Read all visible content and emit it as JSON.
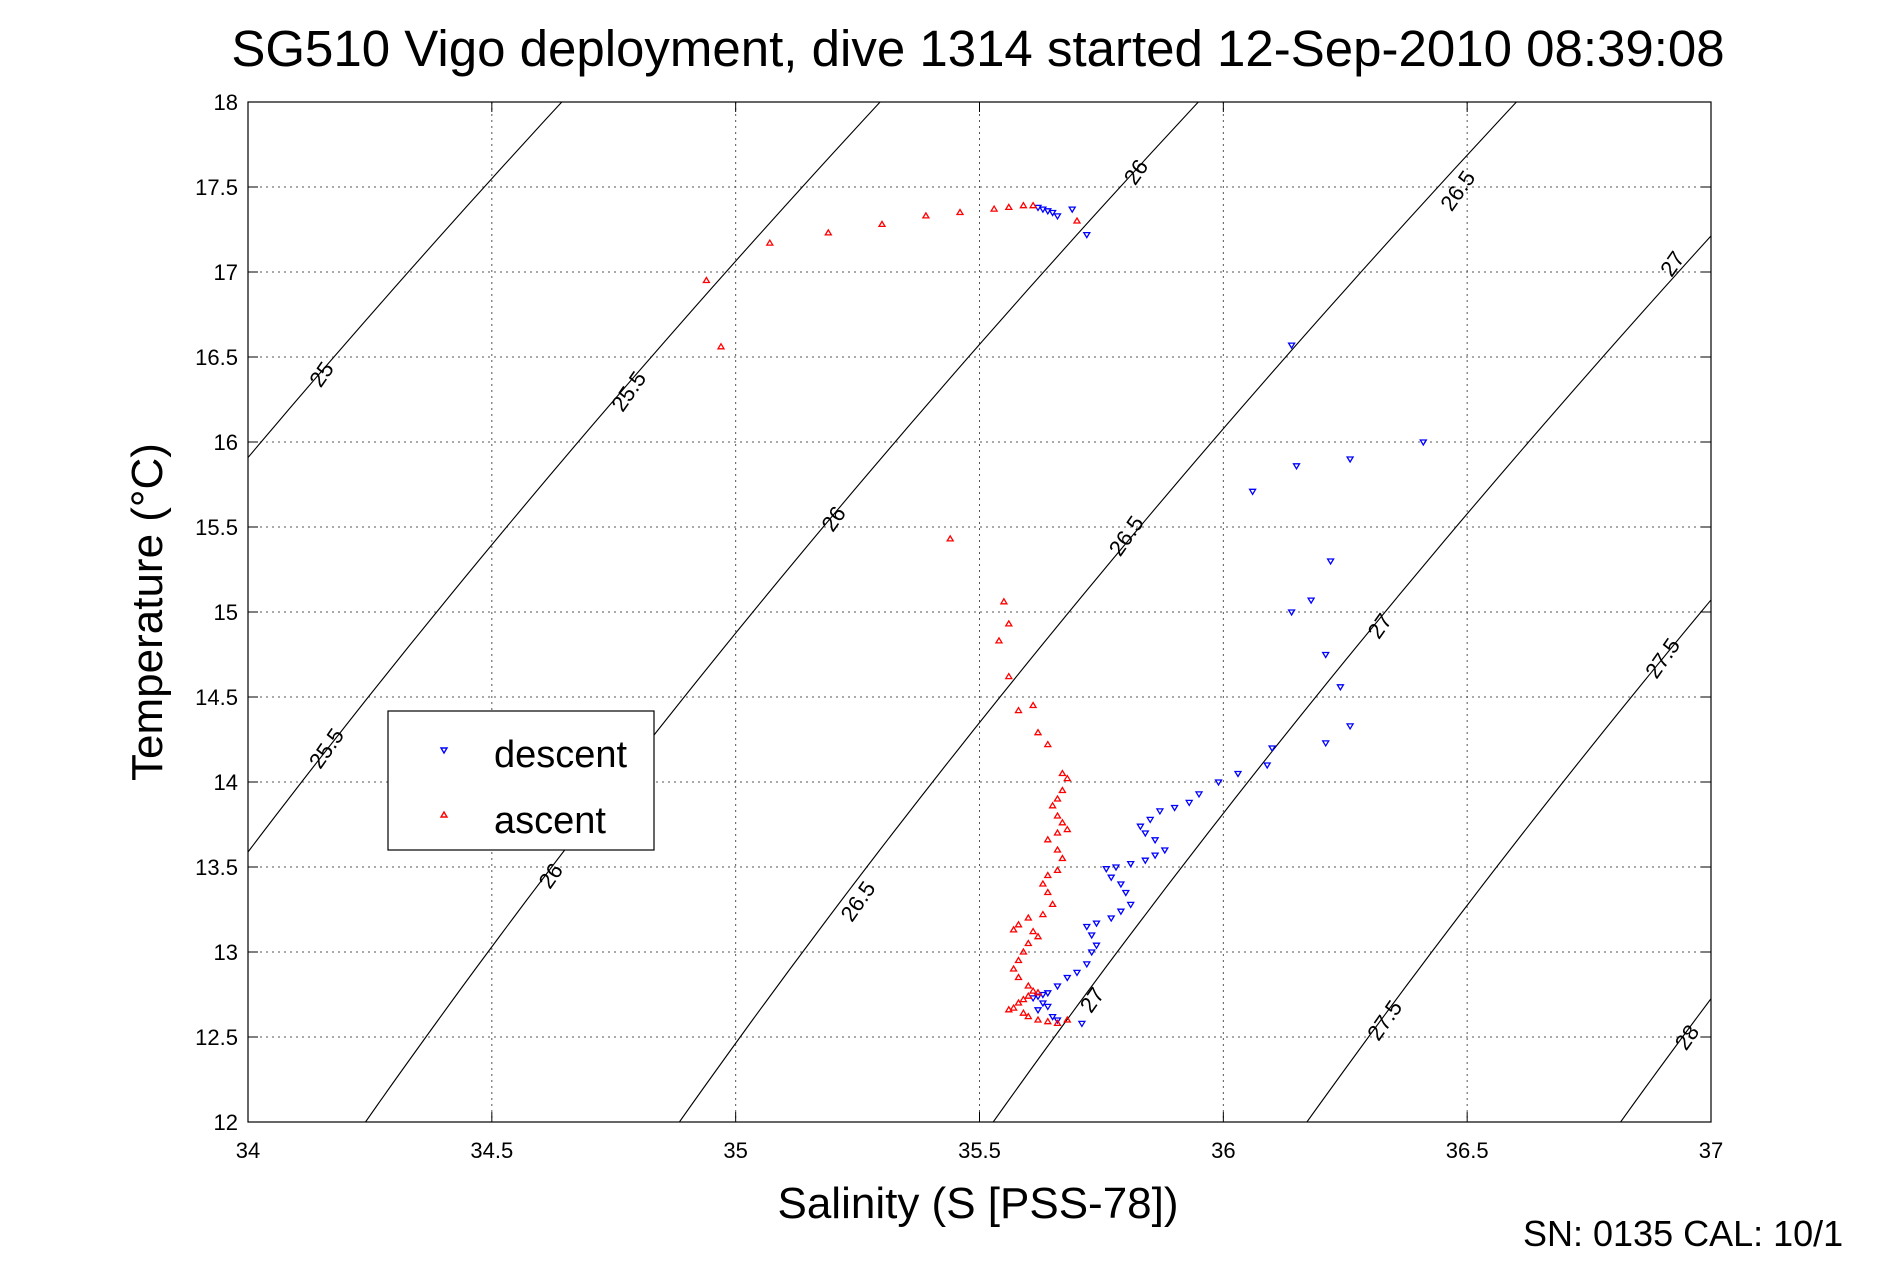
{
  "chart_data": {
    "type": "scatter",
    "title": "SG510 Vigo deployment, dive 1314 started 12-Sep-2010 08:39:08",
    "xlabel": "Salinity (S [PSS-78])",
    "ylabel": "Temperature (°C)",
    "xlim": [
      34,
      37
    ],
    "ylim": [
      12,
      18
    ],
    "xticks": [
      34,
      34.5,
      35,
      35.5,
      36,
      36.5,
      37
    ],
    "xtick_labels": [
      "34",
      "34.5",
      "35",
      "35.5",
      "36",
      "36.5",
      "37"
    ],
    "yticks": [
      12,
      12.5,
      13,
      13.5,
      14,
      14.5,
      15,
      15.5,
      16,
      16.5,
      17,
      17.5,
      18
    ],
    "ytick_labels": [
      "12",
      "12.5",
      "13",
      "13.5",
      "14",
      "14.5",
      "15",
      "15.5",
      "16",
      "16.5",
      "17",
      "17.5",
      "18"
    ],
    "grid": true,
    "legend_position": "center-left",
    "density_contours": {
      "levels": [
        25,
        25.5,
        26,
        26.5,
        27,
        27.5,
        28
      ],
      "color": "#000000",
      "labels": [
        {
          "text": "25",
          "s": 34.15,
          "t": 16.4
        },
        {
          "text": "25.5",
          "s": 34.78,
          "t": 16.3
        },
        {
          "text": "26",
          "s": 35.82,
          "t": 17.59
        },
        {
          "text": "26.5",
          "s": 36.48,
          "t": 17.48
        },
        {
          "text": "27",
          "s": 36.92,
          "t": 17.05
        },
        {
          "text": "25.5",
          "s": 34.16,
          "t": 14.2
        },
        {
          "text": "26",
          "s": 35.2,
          "t": 15.55
        },
        {
          "text": "26.5",
          "s": 35.8,
          "t": 15.45
        },
        {
          "text": "27",
          "s": 36.32,
          "t": 14.92
        },
        {
          "text": "27.5",
          "s": 36.9,
          "t": 14.73
        },
        {
          "text": "26",
          "s": 34.62,
          "t": 13.45
        },
        {
          "text": "26.5",
          "s": 35.25,
          "t": 13.3
        },
        {
          "text": "27",
          "s": 35.73,
          "t": 12.72
        },
        {
          "text": "27.5",
          "s": 36.33,
          "t": 12.6
        },
        {
          "text": "28",
          "s": 36.95,
          "t": 12.5
        }
      ]
    },
    "series": [
      {
        "name": "descent",
        "color": "#0000ff",
        "marker": "triangle-down",
        "points": [
          [
            35.62,
            17.38
          ],
          [
            35.63,
            17.37
          ],
          [
            35.64,
            17.36
          ],
          [
            35.65,
            17.35
          ],
          [
            35.66,
            17.33
          ],
          [
            35.69,
            17.37
          ],
          [
            35.72,
            17.22
          ],
          [
            36.14,
            16.57
          ],
          [
            36.41,
            16.0
          ],
          [
            36.26,
            15.9
          ],
          [
            36.15,
            15.86
          ],
          [
            36.06,
            15.71
          ],
          [
            36.22,
            15.3
          ],
          [
            36.18,
            15.07
          ],
          [
            36.14,
            15.0
          ],
          [
            36.21,
            14.75
          ],
          [
            36.24,
            14.56
          ],
          [
            36.26,
            14.33
          ],
          [
            36.21,
            14.23
          ],
          [
            36.1,
            14.2
          ],
          [
            36.09,
            14.1
          ],
          [
            36.03,
            14.05
          ],
          [
            35.99,
            14.0
          ],
          [
            35.95,
            13.93
          ],
          [
            35.93,
            13.88
          ],
          [
            35.9,
            13.85
          ],
          [
            35.87,
            13.83
          ],
          [
            35.85,
            13.78
          ],
          [
            35.83,
            13.74
          ],
          [
            35.84,
            13.7
          ],
          [
            35.86,
            13.66
          ],
          [
            35.88,
            13.6
          ],
          [
            35.86,
            13.57
          ],
          [
            35.84,
            13.54
          ],
          [
            35.81,
            13.52
          ],
          [
            35.78,
            13.5
          ],
          [
            35.76,
            13.49
          ],
          [
            35.77,
            13.44
          ],
          [
            35.79,
            13.4
          ],
          [
            35.8,
            13.35
          ],
          [
            35.81,
            13.28
          ],
          [
            35.79,
            13.24
          ],
          [
            35.77,
            13.2
          ],
          [
            35.74,
            13.17
          ],
          [
            35.72,
            13.15
          ],
          [
            35.73,
            13.1
          ],
          [
            35.74,
            13.04
          ],
          [
            35.73,
            13.0
          ],
          [
            35.72,
            12.93
          ],
          [
            35.7,
            12.88
          ],
          [
            35.68,
            12.85
          ],
          [
            35.66,
            12.8
          ],
          [
            35.64,
            12.76
          ],
          [
            35.63,
            12.75
          ],
          [
            35.62,
            12.74
          ],
          [
            35.61,
            12.73
          ],
          [
            35.63,
            12.7
          ],
          [
            35.64,
            12.68
          ],
          [
            35.62,
            12.66
          ],
          [
            35.65,
            12.62
          ],
          [
            35.66,
            12.6
          ],
          [
            35.71,
            12.58
          ]
        ]
      },
      {
        "name": "ascent",
        "color": "#ff0000",
        "marker": "triangle-up",
        "points": [
          [
            35.7,
            17.3
          ],
          [
            35.61,
            17.39
          ],
          [
            35.59,
            17.39
          ],
          [
            35.56,
            17.38
          ],
          [
            35.53,
            17.37
          ],
          [
            35.46,
            17.35
          ],
          [
            35.39,
            17.33
          ],
          [
            35.3,
            17.28
          ],
          [
            35.19,
            17.23
          ],
          [
            35.07,
            17.17
          ],
          [
            34.94,
            16.95
          ],
          [
            34.97,
            16.56
          ],
          [
            35.44,
            15.43
          ],
          [
            35.55,
            15.06
          ],
          [
            35.56,
            14.93
          ],
          [
            35.54,
            14.83
          ],
          [
            35.56,
            14.62
          ],
          [
            35.58,
            14.42
          ],
          [
            35.61,
            14.45
          ],
          [
            35.62,
            14.29
          ],
          [
            35.64,
            14.22
          ],
          [
            35.67,
            14.05
          ],
          [
            35.68,
            14.02
          ],
          [
            35.67,
            13.95
          ],
          [
            35.66,
            13.9
          ],
          [
            35.65,
            13.86
          ],
          [
            35.66,
            13.8
          ],
          [
            35.67,
            13.76
          ],
          [
            35.68,
            13.72
          ],
          [
            35.66,
            13.7
          ],
          [
            35.64,
            13.66
          ],
          [
            35.66,
            13.6
          ],
          [
            35.67,
            13.55
          ],
          [
            35.66,
            13.48
          ],
          [
            35.64,
            13.45
          ],
          [
            35.63,
            13.4
          ],
          [
            35.64,
            13.35
          ],
          [
            35.65,
            13.28
          ],
          [
            35.63,
            13.22
          ],
          [
            35.6,
            13.2
          ],
          [
            35.58,
            13.16
          ],
          [
            35.57,
            13.13
          ],
          [
            35.61,
            13.12
          ],
          [
            35.62,
            13.09
          ],
          [
            35.6,
            13.05
          ],
          [
            35.59,
            13.0
          ],
          [
            35.58,
            12.95
          ],
          [
            35.57,
            12.9
          ],
          [
            35.58,
            12.85
          ],
          [
            35.6,
            12.8
          ],
          [
            35.61,
            12.77
          ],
          [
            35.62,
            12.76
          ],
          [
            35.6,
            12.74
          ],
          [
            35.59,
            12.72
          ],
          [
            35.58,
            12.7
          ],
          [
            35.57,
            12.67
          ],
          [
            35.56,
            12.66
          ],
          [
            35.59,
            12.64
          ],
          [
            35.6,
            12.62
          ],
          [
            35.62,
            12.6
          ],
          [
            35.64,
            12.59
          ],
          [
            35.66,
            12.58
          ],
          [
            35.68,
            12.6
          ]
        ]
      }
    ]
  },
  "footer_text": "SN: 0135  CAL: 10/1"
}
